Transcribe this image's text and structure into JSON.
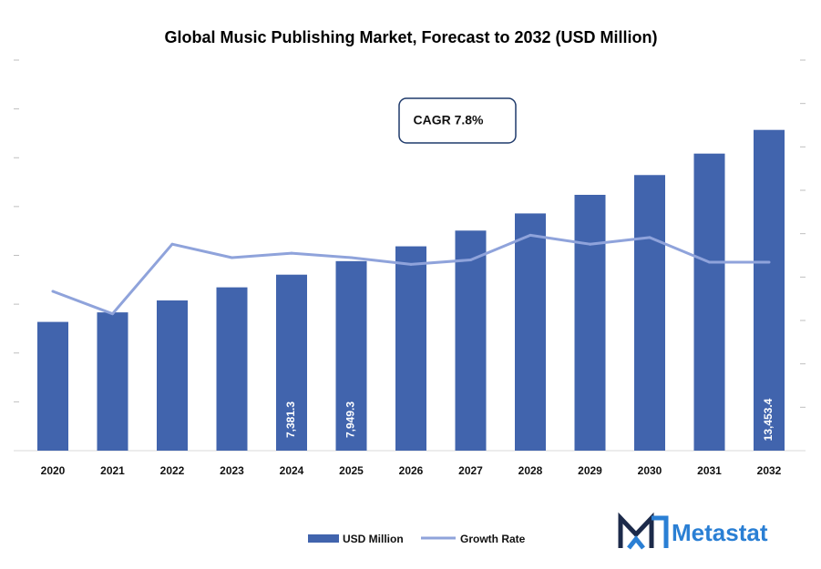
{
  "chart_data": {
    "type": "bar",
    "title": "Global Music Publishing Market, Forecast to 2032 (USD Million)",
    "categories": [
      "2020",
      "2021",
      "2022",
      "2023",
      "2024",
      "2025",
      "2026",
      "2027",
      "2028",
      "2029",
      "2030",
      "2031",
      "2032"
    ],
    "series": [
      {
        "name": "USD Million",
        "type": "bar",
        "color": "#4164ad",
        "values": [
          5400,
          5800,
          6300,
          6850,
          7381.3,
          7949.3,
          8570,
          9230,
          9950,
          10730,
          11560,
          12460,
          13453.4
        ]
      },
      {
        "name": "Growth Rate",
        "type": "line",
        "color": "#8fa3db",
        "values": [
          7.1,
          6.1,
          9.2,
          8.6,
          8.8,
          8.6,
          8.3,
          8.5,
          9.6,
          9.2,
          9.5,
          8.4,
          8.4
        ]
      }
    ],
    "data_labels": [
      {
        "category": "2024",
        "text": "7,381.3"
      },
      {
        "category": "2025",
        "text": "7,949.3"
      },
      {
        "category": "2032",
        "text": "13,453.4"
      }
    ],
    "annotation": "CAGR 7.8%",
    "ylim": [
      0,
      16000
    ],
    "y2lim": [
      0,
      17
    ],
    "xlabel": "",
    "ylabel": "",
    "grid": false,
    "legend": "bottom-center"
  },
  "logo": {
    "text": "Metastat",
    "icon": "metastat-m-logo-icon"
  }
}
